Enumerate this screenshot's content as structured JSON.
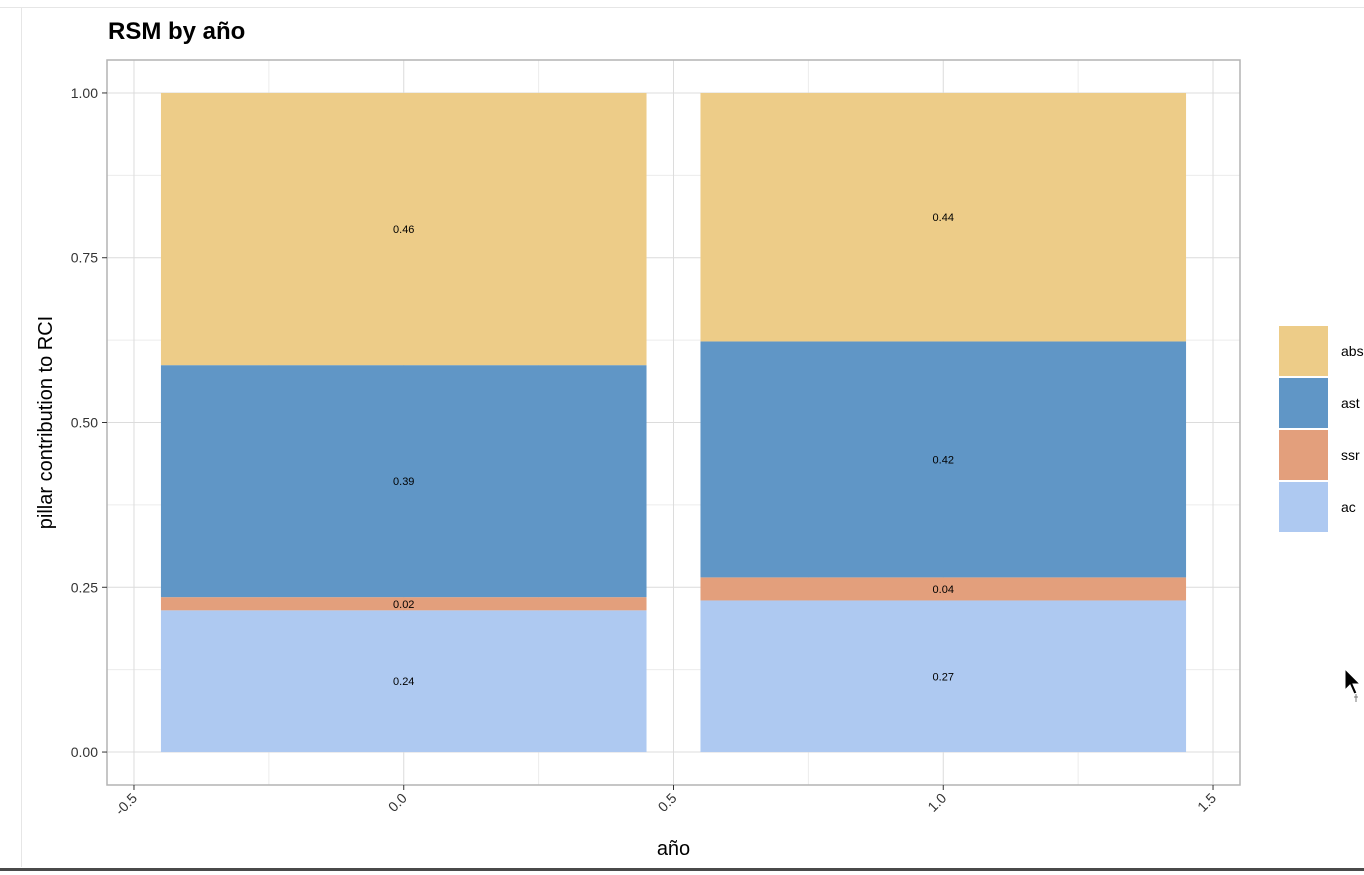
{
  "chart_data": {
    "type": "bar",
    "title": "RSM by año",
    "xlabel": "año",
    "ylabel": "pillar contribution to RCI",
    "xlim": [
      -0.55,
      1.55
    ],
    "ylim": [
      -0.05,
      1.05
    ],
    "x_ticks": [
      "-0.5",
      "0.0",
      "0.5",
      "1.0",
      "1.5"
    ],
    "x_tick_values": [
      -0.5,
      0.0,
      0.5,
      1.0,
      1.5
    ],
    "y_ticks": [
      "0.00",
      "0.25",
      "0.50",
      "0.75",
      "1.00"
    ],
    "y_tick_values": [
      0,
      0.25,
      0.5,
      0.75,
      1.0
    ],
    "bar_x": [
      0,
      1
    ],
    "bar_width": 0.9,
    "stacked": true,
    "series": [
      {
        "name": "ac",
        "color": "#aec9f1",
        "values": [
          0.215,
          0.23
        ],
        "labels": [
          "0.24",
          "0.27"
        ]
      },
      {
        "name": "ssr",
        "color": "#e39f7c",
        "values": [
          0.02,
          0.035
        ],
        "labels": [
          "0.02",
          "0.04"
        ]
      },
      {
        "name": "ast",
        "color": "#6096c6",
        "values": [
          0.352,
          0.358
        ],
        "labels": [
          "0.39",
          "0.42"
        ]
      },
      {
        "name": "abs",
        "color": "#edcc88",
        "values": [
          0.413,
          0.377
        ],
        "labels": [
          "0.46",
          "0.44"
        ]
      }
    ],
    "legend_position": "right",
    "legend": [
      "abs",
      "ast",
      "ssr",
      "ac"
    ],
    "grid": true
  }
}
